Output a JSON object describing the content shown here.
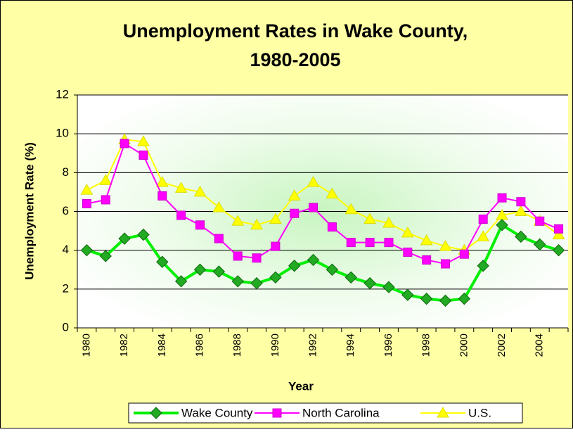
{
  "chart_data": {
    "type": "line",
    "title": [
      "Unemployment Rates in Wake County,",
      "1980-2005"
    ],
    "x_label": "Year",
    "y_label": "Unemployment Rate (%)",
    "categories": [
      "1980",
      null,
      "1982",
      null,
      "1984",
      null,
      "1986",
      null,
      "1988",
      null,
      "1990",
      null,
      "1992",
      null,
      "1994",
      null,
      "1996",
      null,
      "1998",
      null,
      "2000",
      null,
      "2002",
      null,
      "2004",
      null
    ],
    "series": [
      {
        "name": "Wake County",
        "color": "#00ee00",
        "marker": "diamond",
        "values": [
          4.0,
          3.7,
          4.6,
          4.8,
          3.4,
          2.4,
          3.0,
          2.9,
          2.4,
          2.3,
          2.6,
          3.2,
          3.5,
          3.0,
          2.6,
          2.3,
          2.1,
          1.7,
          1.5,
          1.4,
          1.5,
          3.2,
          5.3,
          4.7,
          4.3,
          4.0
        ]
      },
      {
        "name": "North Carolina",
        "color": "#ff00ff",
        "marker": "square",
        "values": [
          6.4,
          6.6,
          9.5,
          8.9,
          6.8,
          5.8,
          5.3,
          4.6,
          3.7,
          3.6,
          4.2,
          5.9,
          6.2,
          5.2,
          4.4,
          4.4,
          4.4,
          3.9,
          3.5,
          3.3,
          3.8,
          5.6,
          6.7,
          6.5,
          5.5,
          5.1
        ]
      },
      {
        "name": "U.S.",
        "color": "#ffff00",
        "marker": "triangle",
        "values": [
          7.1,
          7.6,
          9.7,
          9.6,
          7.5,
          7.2,
          7.0,
          6.2,
          5.5,
          5.3,
          5.6,
          6.8,
          7.5,
          6.9,
          6.1,
          5.6,
          5.4,
          4.9,
          4.5,
          4.2,
          4.0,
          4.7,
          5.8,
          6.0,
          5.5,
          4.8
        ]
      }
    ],
    "ylim": [
      0,
      12
    ],
    "yticks": [
      0,
      2,
      4,
      6,
      8,
      10,
      12
    ],
    "grid": true,
    "legend": "bottom"
  }
}
